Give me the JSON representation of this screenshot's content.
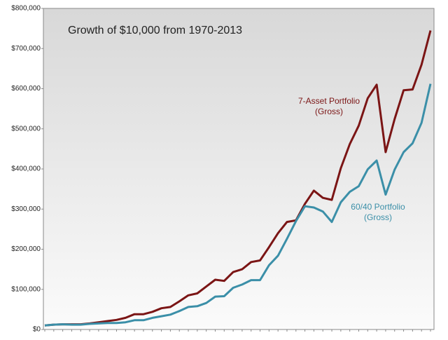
{
  "chart_data": {
    "type": "line",
    "title": "Growth of $10,000 from 1970-2013",
    "series": [
      {
        "name_lines": [
          "7-Asset Portfolio",
          "(Gross)"
        ],
        "color": "#7b1515",
        "values": [
          10000,
          12000,
          13000,
          13000,
          13000,
          15000,
          18000,
          21000,
          24000,
          29000,
          38000,
          38000,
          44000,
          53000,
          56000,
          70000,
          85000,
          90000,
          107000,
          124000,
          121000,
          143000,
          150000,
          168000,
          172000,
          205000,
          240000,
          268000,
          272000,
          313000,
          346000,
          328000,
          323000,
          402000,
          462000,
          508000,
          576000,
          610000,
          442000,
          524000,
          596000,
          598000,
          660000,
          745000
        ]
      },
      {
        "name_lines": [
          "60/40 Portfolio",
          "(Gross)"
        ],
        "color": "#3b8fa8",
        "values": [
          10000,
          12000,
          13000,
          12000,
          12000,
          14000,
          15000,
          16000,
          16000,
          18000,
          23000,
          23000,
          29000,
          33000,
          37000,
          46000,
          56000,
          58000,
          66000,
          82000,
          83000,
          104000,
          112000,
          123000,
          123000,
          160000,
          184000,
          226000,
          270000,
          307000,
          304000,
          294000,
          268000,
          317000,
          343000,
          357000,
          399000,
          421000,
          336000,
          398000,
          442000,
          464000,
          515000,
          612000
        ]
      }
    ],
    "ylim": [
      0,
      800000
    ],
    "yticks": [
      {
        "value": 0,
        "label": "$0"
      },
      {
        "value": 100000,
        "label": "$100,000"
      },
      {
        "value": 200000,
        "label": "$200,000"
      },
      {
        "value": 300000,
        "label": "$300,000"
      },
      {
        "value": 400000,
        "label": "$400,000"
      },
      {
        "value": 500000,
        "label": "$500,000"
      },
      {
        "value": 600000,
        "label": "$600,000"
      },
      {
        "value": 700000,
        "label": "$700,000"
      },
      {
        "value": 800000,
        "label": "$800,000"
      }
    ],
    "grid": false
  }
}
